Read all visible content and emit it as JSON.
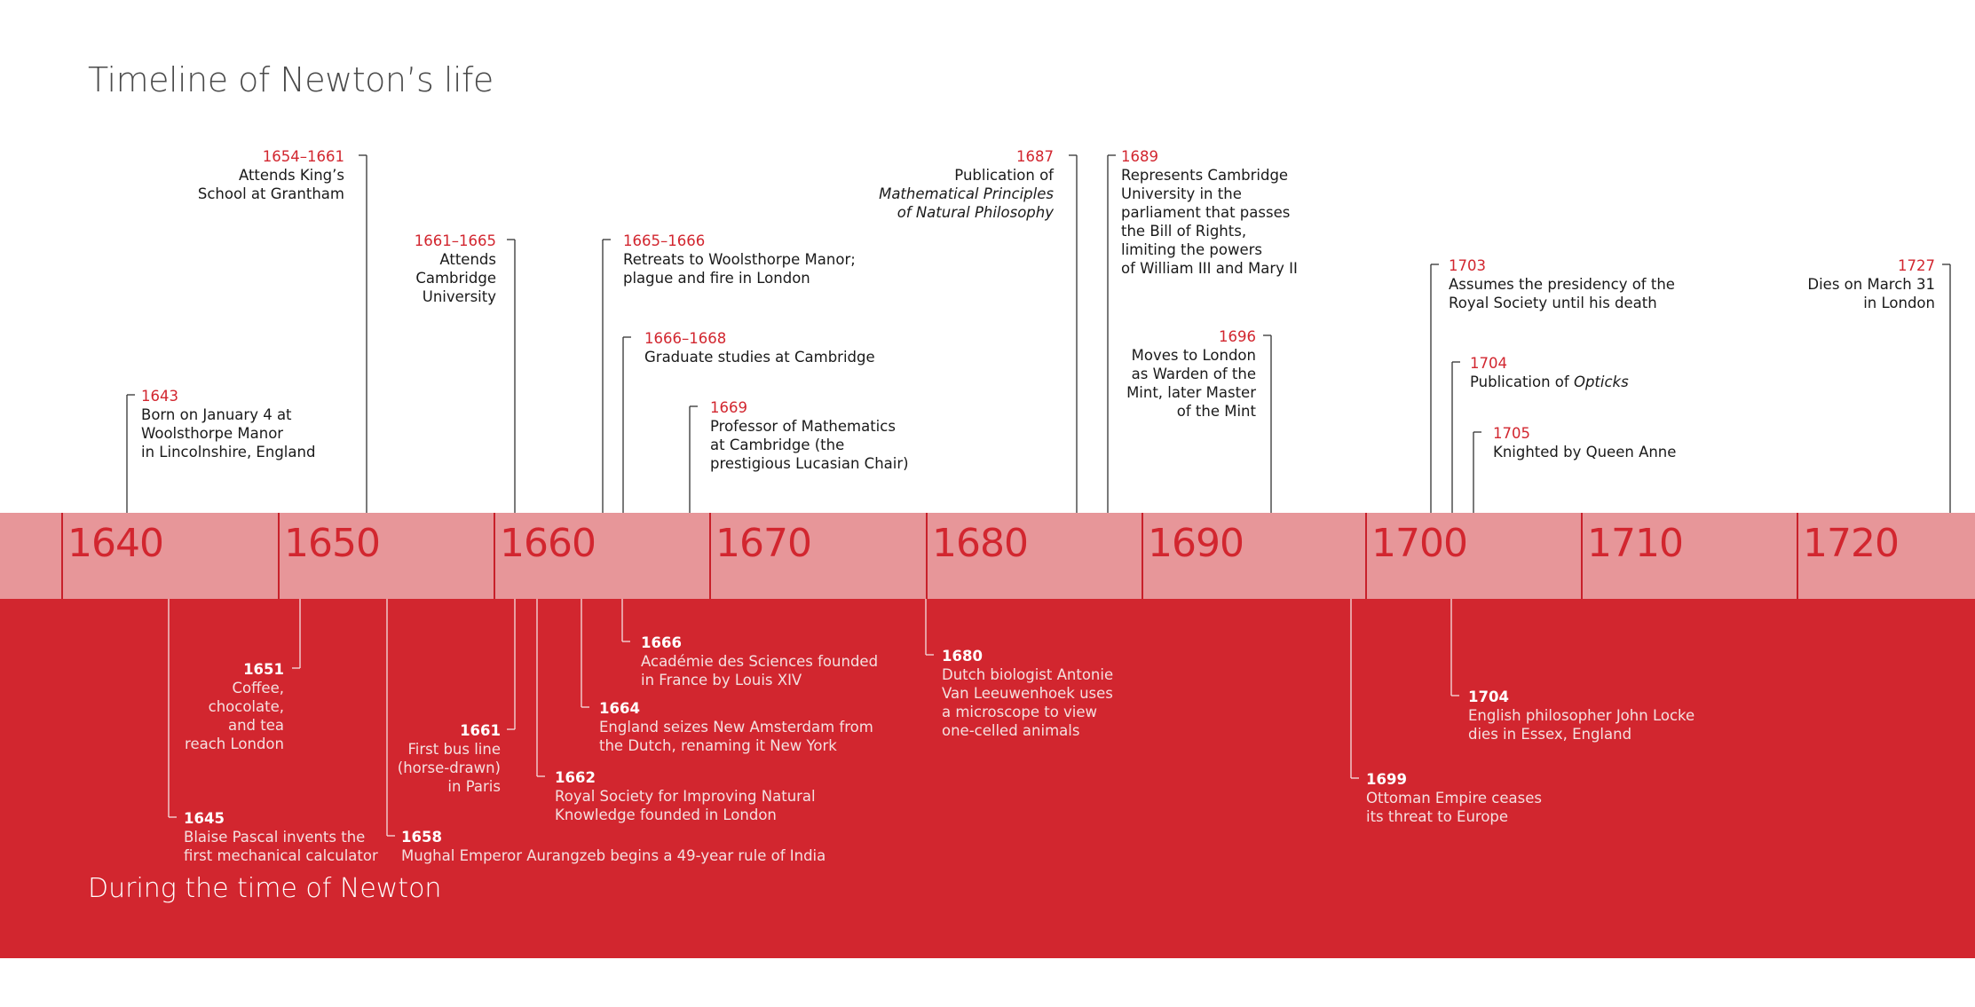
{
  "title": "Timeline of Newton’s life",
  "bottom_title": "During the time of Newton",
  "colors": {
    "red": "#D2262F",
    "light_red": "#E79699",
    "dark_text": "#1a1a1a",
    "title_gray": "#4a4a4a"
  },
  "decades": [
    "1640",
    "1650",
    "1660",
    "1670",
    "1680",
    "1690",
    "1700",
    "1710",
    "1720"
  ],
  "newton_events": [
    {
      "year": "1643",
      "lines": [
        "Born on January 4 at",
        "Woolsthorpe Manor",
        "in Lincolnshire, England"
      ]
    },
    {
      "year": "1654–1661",
      "lines": [
        "Attends King’s",
        "School at Grantham"
      ]
    },
    {
      "year": "1661–1665",
      "lines": [
        "Attends",
        "Cambridge",
        "University"
      ]
    },
    {
      "year": "1665–1666",
      "lines": [
        "Retreats to Woolsthorpe Manor;",
        "plague and fire in London"
      ]
    },
    {
      "year": "1666–1668",
      "lines": [
        "Graduate studies at Cambridge"
      ]
    },
    {
      "year": "1669",
      "lines": [
        "Professor of Mathematics",
        "at Cambridge (the",
        "prestigious Lucasian Chair)"
      ]
    },
    {
      "year": "1687",
      "lines": [
        "Publication of",
        "Mathematical Principles",
        "of Natural Philosophy"
      ]
    },
    {
      "year": "1689",
      "lines": [
        "Represents Cambridge",
        "University in the",
        "parliament that passes",
        "the Bill of Rights,",
        "limiting the powers",
        "of William III and Mary II"
      ]
    },
    {
      "year": "1696",
      "lines": [
        "Moves to London",
        "as Warden of the",
        "Mint, later Master",
        "of the Mint"
      ]
    },
    {
      "year": "1703",
      "lines": [
        "Assumes the presidency of the",
        "Royal Society until his death"
      ]
    },
    {
      "year": "1704",
      "lines": [
        "Publication of",
        "Opticks"
      ]
    },
    {
      "year": "1705",
      "lines": [
        "Knighted by Queen Anne"
      ]
    },
    {
      "year": "1727",
      "lines": [
        "Dies on March 31",
        "in London"
      ]
    }
  ],
  "world_events": [
    {
      "year": "1645",
      "lines": [
        "Blaise Pascal invents the",
        "first mechanical calculator"
      ]
    },
    {
      "year": "1651",
      "lines": [
        "Coffee,",
        "chocolate,",
        "and tea",
        "reach London"
      ]
    },
    {
      "year": "1658",
      "lines": [
        "Mughal Emperor Aurangzeb begins a 49-year rule of India"
      ]
    },
    {
      "year": "1661",
      "lines": [
        "First bus line",
        "(horse-drawn)",
        "in Paris"
      ]
    },
    {
      "year": "1662",
      "lines": [
        "Royal Society for Improving Natural",
        "Knowledge founded in London"
      ]
    },
    {
      "year": "1664",
      "lines": [
        "England seizes New Amsterdam from",
        "the Dutch, renaming it New York"
      ]
    },
    {
      "year": "1666",
      "lines": [
        "Académie des Sciences founded",
        "in France by Louis XIV"
      ]
    },
    {
      "year": "1680",
      "lines": [
        "Dutch biologist Antonie",
        "Van Leeuwenhoek uses",
        "a microscope to view",
        "one-celled animals"
      ]
    },
    {
      "year": "1699",
      "lines": [
        "Ottoman Empire ceases",
        "its threat to Europe"
      ]
    },
    {
      "year": "1704",
      "lines": [
        "English philosopher John Locke",
        "dies in Essex, England"
      ]
    }
  ]
}
